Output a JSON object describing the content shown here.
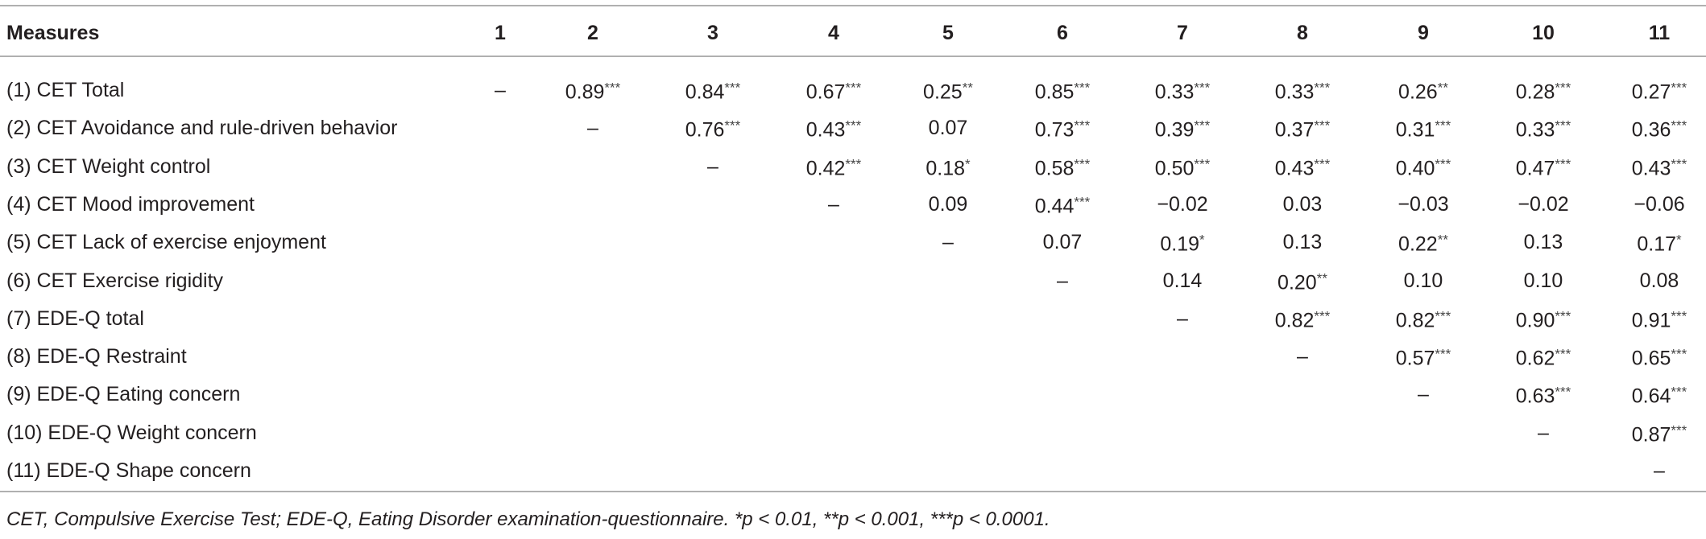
{
  "table": {
    "columns": [
      "Measures",
      "1",
      "2",
      "3",
      "4",
      "5",
      "6",
      "7",
      "8",
      "9",
      "10",
      "11"
    ],
    "rows": [
      {
        "label": "(1) CET Total",
        "cells": [
          {
            "value": "–"
          },
          {
            "value": "0.89",
            "sig": "***"
          },
          {
            "value": "0.84",
            "sig": "***"
          },
          {
            "value": "0.67",
            "sig": "***"
          },
          {
            "value": "0.25",
            "sig": "**"
          },
          {
            "value": "0.85",
            "sig": "***"
          },
          {
            "value": "0.33",
            "sig": "***"
          },
          {
            "value": "0.33",
            "sig": "***"
          },
          {
            "value": "0.26",
            "sig": "**"
          },
          {
            "value": "0.28",
            "sig": "***"
          },
          {
            "value": "0.27",
            "sig": "***"
          }
        ]
      },
      {
        "label": "(2) CET Avoidance and rule-driven behavior",
        "cells": [
          {
            "value": "–"
          },
          {
            "value": "0.76",
            "sig": "***"
          },
          {
            "value": "0.43",
            "sig": "***"
          },
          {
            "value": "0.07"
          },
          {
            "value": "0.73",
            "sig": "***"
          },
          {
            "value": "0.39",
            "sig": "***"
          },
          {
            "value": "0.37",
            "sig": "***"
          },
          {
            "value": "0.31",
            "sig": "***"
          },
          {
            "value": "0.33",
            "sig": "***"
          },
          {
            "value": "0.36",
            "sig": "***"
          }
        ]
      },
      {
        "label": "(3) CET Weight control",
        "cells": [
          {
            "value": "–"
          },
          {
            "value": "0.42",
            "sig": "***"
          },
          {
            "value": "0.18",
            "sig": "*"
          },
          {
            "value": "0.58",
            "sig": "***"
          },
          {
            "value": "0.50",
            "sig": "***"
          },
          {
            "value": "0.43",
            "sig": "***"
          },
          {
            "value": "0.40",
            "sig": "***"
          },
          {
            "value": "0.47",
            "sig": "***"
          },
          {
            "value": "0.43",
            "sig": "***"
          }
        ]
      },
      {
        "label": "(4) CET Mood improvement",
        "cells": [
          {
            "value": "–"
          },
          {
            "value": "0.09"
          },
          {
            "value": "0.44",
            "sig": "***"
          },
          {
            "value": "−0.02"
          },
          {
            "value": "0.03"
          },
          {
            "value": "−0.03"
          },
          {
            "value": "−0.02"
          },
          {
            "value": "−0.06"
          }
        ]
      },
      {
        "label": "(5) CET Lack of exercise enjoyment",
        "cells": [
          {
            "value": "–"
          },
          {
            "value": "0.07"
          },
          {
            "value": "0.19",
            "sig": "*"
          },
          {
            "value": "0.13"
          },
          {
            "value": "0.22",
            "sig": "**"
          },
          {
            "value": "0.13"
          },
          {
            "value": "0.17",
            "sig": "*"
          }
        ]
      },
      {
        "label": "(6) CET Exercise rigidity",
        "cells": [
          {
            "value": "–"
          },
          {
            "value": "0.14"
          },
          {
            "value": "0.20",
            "sig": "**"
          },
          {
            "value": "0.10"
          },
          {
            "value": "0.10"
          },
          {
            "value": "0.08"
          }
        ]
      },
      {
        "label": "(7) EDE-Q total",
        "cells": [
          {
            "value": "–"
          },
          {
            "value": "0.82",
            "sig": "***"
          },
          {
            "value": "0.82",
            "sig": "***"
          },
          {
            "value": "0.90",
            "sig": "***"
          },
          {
            "value": "0.91",
            "sig": "***"
          }
        ]
      },
      {
        "label": "(8) EDE-Q Restraint",
        "cells": [
          {
            "value": "–"
          },
          {
            "value": "0.57",
            "sig": "***"
          },
          {
            "value": "0.62",
            "sig": "***"
          },
          {
            "value": "0.65",
            "sig": "***"
          }
        ]
      },
      {
        "label": "(9) EDE-Q Eating concern",
        "cells": [
          {
            "value": "–"
          },
          {
            "value": "0.63",
            "sig": "***"
          },
          {
            "value": "0.64",
            "sig": "***"
          }
        ]
      },
      {
        "label": "(10) EDE-Q Weight concern",
        "cells": [
          {
            "value": "–"
          },
          {
            "value": "0.87",
            "sig": "***"
          }
        ]
      },
      {
        "label": "(11) EDE-Q Shape concern",
        "cells": [
          {
            "value": "–"
          }
        ]
      }
    ],
    "footnote": "CET, Compulsive Exercise Test; EDE-Q, Eating Disorder examination-questionnaire. *p < 0.01, **p < 0.001, ***p < 0.0001."
  }
}
